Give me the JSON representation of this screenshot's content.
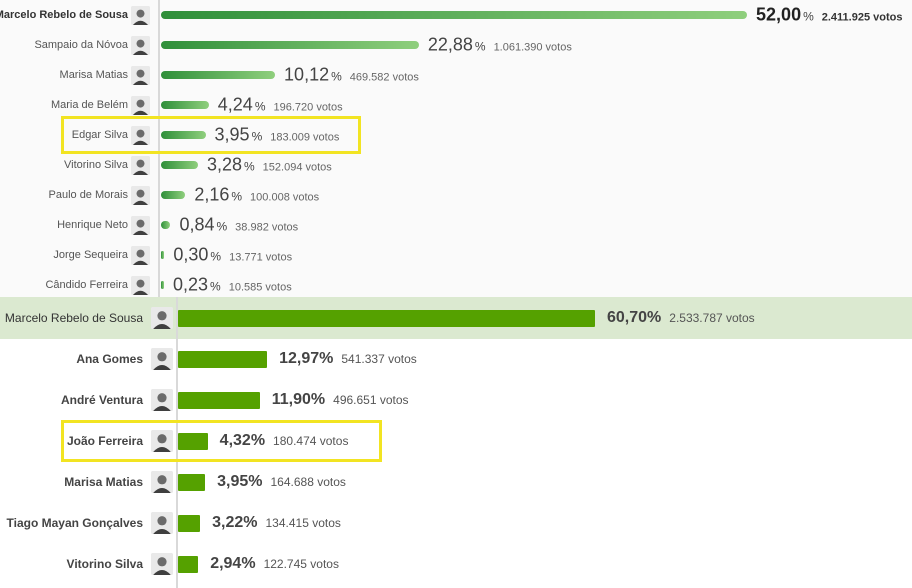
{
  "chart_data": [
    {
      "type": "bar",
      "orientation": "horizontal",
      "xlim": [
        0,
        100
      ],
      "grid": false,
      "highlighted": "Edgar Silva",
      "candidates": [
        {
          "name": "Marcelo Rebelo de Sousa",
          "percent": 52.0,
          "percent_label": "52,00",
          "votes_label": "2.411.925 votos"
        },
        {
          "name": "Sampaio da Nóvoa",
          "percent": 22.88,
          "percent_label": "22,88",
          "votes_label": "1.061.390 votos"
        },
        {
          "name": "Marisa Matias",
          "percent": 10.12,
          "percent_label": "10,12",
          "votes_label": "469.582 votos"
        },
        {
          "name": "Maria de Belém",
          "percent": 4.24,
          "percent_label": "4,24",
          "votes_label": "196.720 votos"
        },
        {
          "name": "Edgar Silva",
          "percent": 3.95,
          "percent_label": "3,95",
          "votes_label": "183.009 votos"
        },
        {
          "name": "Vitorino Silva",
          "percent": 3.28,
          "percent_label": "3,28",
          "votes_label": "152.094 votos"
        },
        {
          "name": "Paulo de Morais",
          "percent": 2.16,
          "percent_label": "2,16",
          "votes_label": "100.008 votos"
        },
        {
          "name": "Henrique Neto",
          "percent": 0.84,
          "percent_label": "0,84",
          "votes_label": "38.982 votos"
        },
        {
          "name": "Jorge Sequeira",
          "percent": 0.3,
          "percent_label": "0,30",
          "votes_label": "13.771 votos"
        },
        {
          "name": "Cândido Ferreira",
          "percent": 0.23,
          "percent_label": "0,23",
          "votes_label": "10.585 votos"
        }
      ]
    },
    {
      "type": "bar",
      "orientation": "horizontal",
      "xlim": [
        0,
        100
      ],
      "grid": false,
      "highlighted": "João Ferreira",
      "candidates": [
        {
          "name": "Marcelo Rebelo de Sousa",
          "percent": 60.7,
          "percent_label": "60,70",
          "votes_label": "2.533.787 votos"
        },
        {
          "name": "Ana Gomes",
          "percent": 12.97,
          "percent_label": "12,97",
          "votes_label": "541.337 votos"
        },
        {
          "name": "André Ventura",
          "percent": 11.9,
          "percent_label": "11,90",
          "votes_label": "496.651 votos"
        },
        {
          "name": "João Ferreira",
          "percent": 4.32,
          "percent_label": "4,32",
          "votes_label": "180.474 votos"
        },
        {
          "name": "Marisa Matias",
          "percent": 3.95,
          "percent_label": "3,95",
          "votes_label": "164.688 votos"
        },
        {
          "name": "Tiago Mayan Gonçalves",
          "percent": 3.22,
          "percent_label": "3,22",
          "votes_label": "134.415 votos"
        },
        {
          "name": "Vitorino Silva",
          "percent": 2.94,
          "percent_label": "2,94",
          "votes_label": "122.745 votos"
        }
      ]
    }
  ],
  "percent_symbol": "%",
  "colors": {
    "bar_2016_start": "#2f8f3a",
    "bar_2016_end": "#8fcf7d",
    "bar_2021": "#55a100",
    "winner_band": "#dbe9d0",
    "highlight": "#f2e422"
  },
  "icons": [
    "candidate-portrait-icon"
  ]
}
